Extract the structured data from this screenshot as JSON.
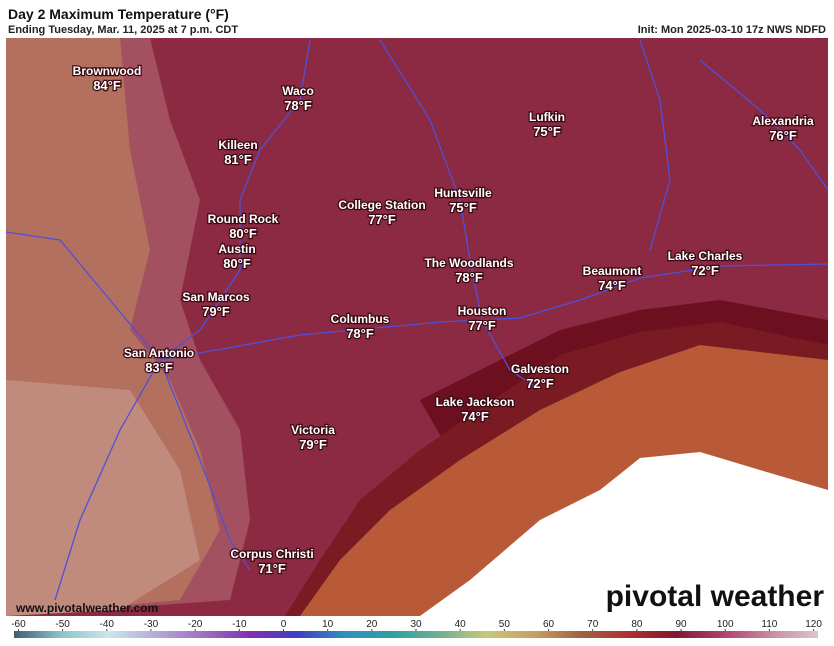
{
  "header": {
    "title": "Day 2 Maximum Temperature (°F)",
    "subtitle": "Ending Tuesday, Mar. 11, 2025 at 7 p.m. CDT",
    "init": "Init: Mon 2025-03-10 17z NWS NDFD"
  },
  "map": {
    "cities": [
      {
        "name": "Brownwood",
        "temp": "84°F"
      },
      {
        "name": "Waco",
        "temp": "78°F"
      },
      {
        "name": "Killeen",
        "temp": "81°F"
      },
      {
        "name": "Lufkin",
        "temp": "75°F"
      },
      {
        "name": "Alexandria",
        "temp": "76°F"
      },
      {
        "name": "College Station",
        "temp": "77°F"
      },
      {
        "name": "Huntsville",
        "temp": "75°F"
      },
      {
        "name": "Round Rock",
        "temp": "80°F"
      },
      {
        "name": "Austin",
        "temp": "80°F"
      },
      {
        "name": "The Woodlands",
        "temp": "78°F"
      },
      {
        "name": "Beaumont",
        "temp": "74°F"
      },
      {
        "name": "Lake Charles",
        "temp": "72°F"
      },
      {
        "name": "San Marcos",
        "temp": "79°F"
      },
      {
        "name": "Houston",
        "temp": "77°F"
      },
      {
        "name": "Columbus",
        "temp": "78°F"
      },
      {
        "name": "San Antonio",
        "temp": "83°F"
      },
      {
        "name": "Galveston",
        "temp": "72°F"
      },
      {
        "name": "Lake Jackson",
        "temp": "74°F"
      },
      {
        "name": "Victoria",
        "temp": "79°F"
      },
      {
        "name": "Corpus Christi",
        "temp": "71°F"
      }
    ]
  },
  "footer": {
    "website": "www.pivotalweather.com",
    "logo": "pivotal weather"
  },
  "colorbar": {
    "lim": [
      -61,
      121
    ],
    "ticks": [
      -60,
      -50,
      -40,
      -30,
      -20,
      -10,
      0,
      10,
      20,
      30,
      40,
      50,
      60,
      70,
      80,
      90,
      100,
      110,
      120
    ],
    "colors": [
      "#3c6070",
      "#8cc4c8",
      "#c8e8ec",
      "#b8a8d8",
      "#a070c0",
      "#8030b0",
      "#4040c0",
      "#3090c0",
      "#30a0a0",
      "#70b090",
      "#c8c878",
      "#c8a060",
      "#a06040",
      "#b03030",
      "#801830",
      "#b04070",
      "#c88aa0",
      "#d8c8cc"
    ]
  }
}
